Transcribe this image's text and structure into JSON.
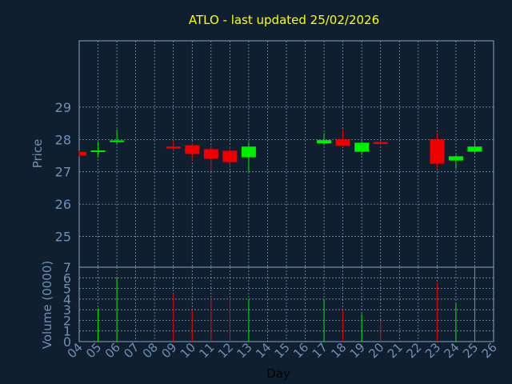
{
  "chart_data": {
    "type": "candlestick",
    "title": "ATLO - last updated 25/02/2026",
    "xlabel": "Day",
    "price_panel": {
      "ylabel": "Price",
      "yticks": [
        25,
        26,
        27,
        28,
        29
      ],
      "ylim": [
        24.05,
        31.05
      ]
    },
    "volume_panel": {
      "ylabel": "Volume (0000)",
      "yticks": [
        0,
        1,
        2,
        3,
        4,
        5,
        6,
        7
      ],
      "ylim": [
        0,
        7
      ]
    },
    "x_tick_labels": [
      "04",
      "05",
      "06",
      "07",
      "08",
      "09",
      "10",
      "11",
      "12",
      "13",
      "14",
      "15",
      "16",
      "17",
      "18",
      "19",
      "20",
      "21",
      "22",
      "23",
      "24",
      "25",
      "26"
    ],
    "candles": [
      {
        "day": "04",
        "open": 27.62,
        "high": 27.65,
        "low": 27.48,
        "close": 27.5,
        "volume": 0
      },
      {
        "day": "05",
        "open": 27.62,
        "high": 27.92,
        "low": 27.47,
        "close": 27.66,
        "volume": 3.1
      },
      {
        "day": "06",
        "open": 27.92,
        "high": 28.3,
        "low": 27.88,
        "close": 27.97,
        "volume": 6.0
      },
      {
        "day": "09",
        "open": 27.78,
        "high": 27.98,
        "low": 27.65,
        "close": 27.72,
        "volume": 4.5
      },
      {
        "day": "10",
        "open": 27.82,
        "high": 27.88,
        "low": 27.35,
        "close": 27.55,
        "volume": 3.0
      },
      {
        "day": "11",
        "open": 27.7,
        "high": 27.82,
        "low": 27.02,
        "close": 27.4,
        "volume": 4.0
      },
      {
        "day": "12",
        "open": 27.65,
        "high": 27.78,
        "low": 27.12,
        "close": 27.3,
        "volume": 4.1
      },
      {
        "day": "13",
        "open": 27.45,
        "high": 27.92,
        "low": 27.0,
        "close": 27.78,
        "volume": 4.0
      },
      {
        "day": "17",
        "open": 27.88,
        "high": 28.2,
        "low": 27.82,
        "close": 27.98,
        "volume": 4.0
      },
      {
        "day": "18",
        "open": 28.0,
        "high": 28.32,
        "low": 27.76,
        "close": 27.8,
        "volume": 3.0
      },
      {
        "day": "19",
        "open": 27.62,
        "high": 27.92,
        "low": 27.52,
        "close": 27.9,
        "volume": 2.6
      },
      {
        "day": "20",
        "open": 27.92,
        "high": 27.96,
        "low": 27.82,
        "close": 27.86,
        "volume": 2.0
      },
      {
        "day": "23",
        "open": 28.0,
        "high": 28.2,
        "low": 27.08,
        "close": 27.25,
        "volume": 5.5
      },
      {
        "day": "24",
        "open": 27.35,
        "high": 27.52,
        "low": 27.1,
        "close": 27.48,
        "volume": 3.6
      },
      {
        "day": "25",
        "open": 27.62,
        "high": 27.95,
        "low": 27.58,
        "close": 27.78,
        "volume": 6.9
      }
    ],
    "grid": true,
    "colors": {
      "background": "#0f1f30",
      "frame": "#8aa6c4",
      "grid": "#8aa6c4",
      "title": "#ffff00",
      "axis_text": "#6f90b6",
      "xlabel": "#000000",
      "up": "#00ee00",
      "down": "#ee0000"
    }
  }
}
